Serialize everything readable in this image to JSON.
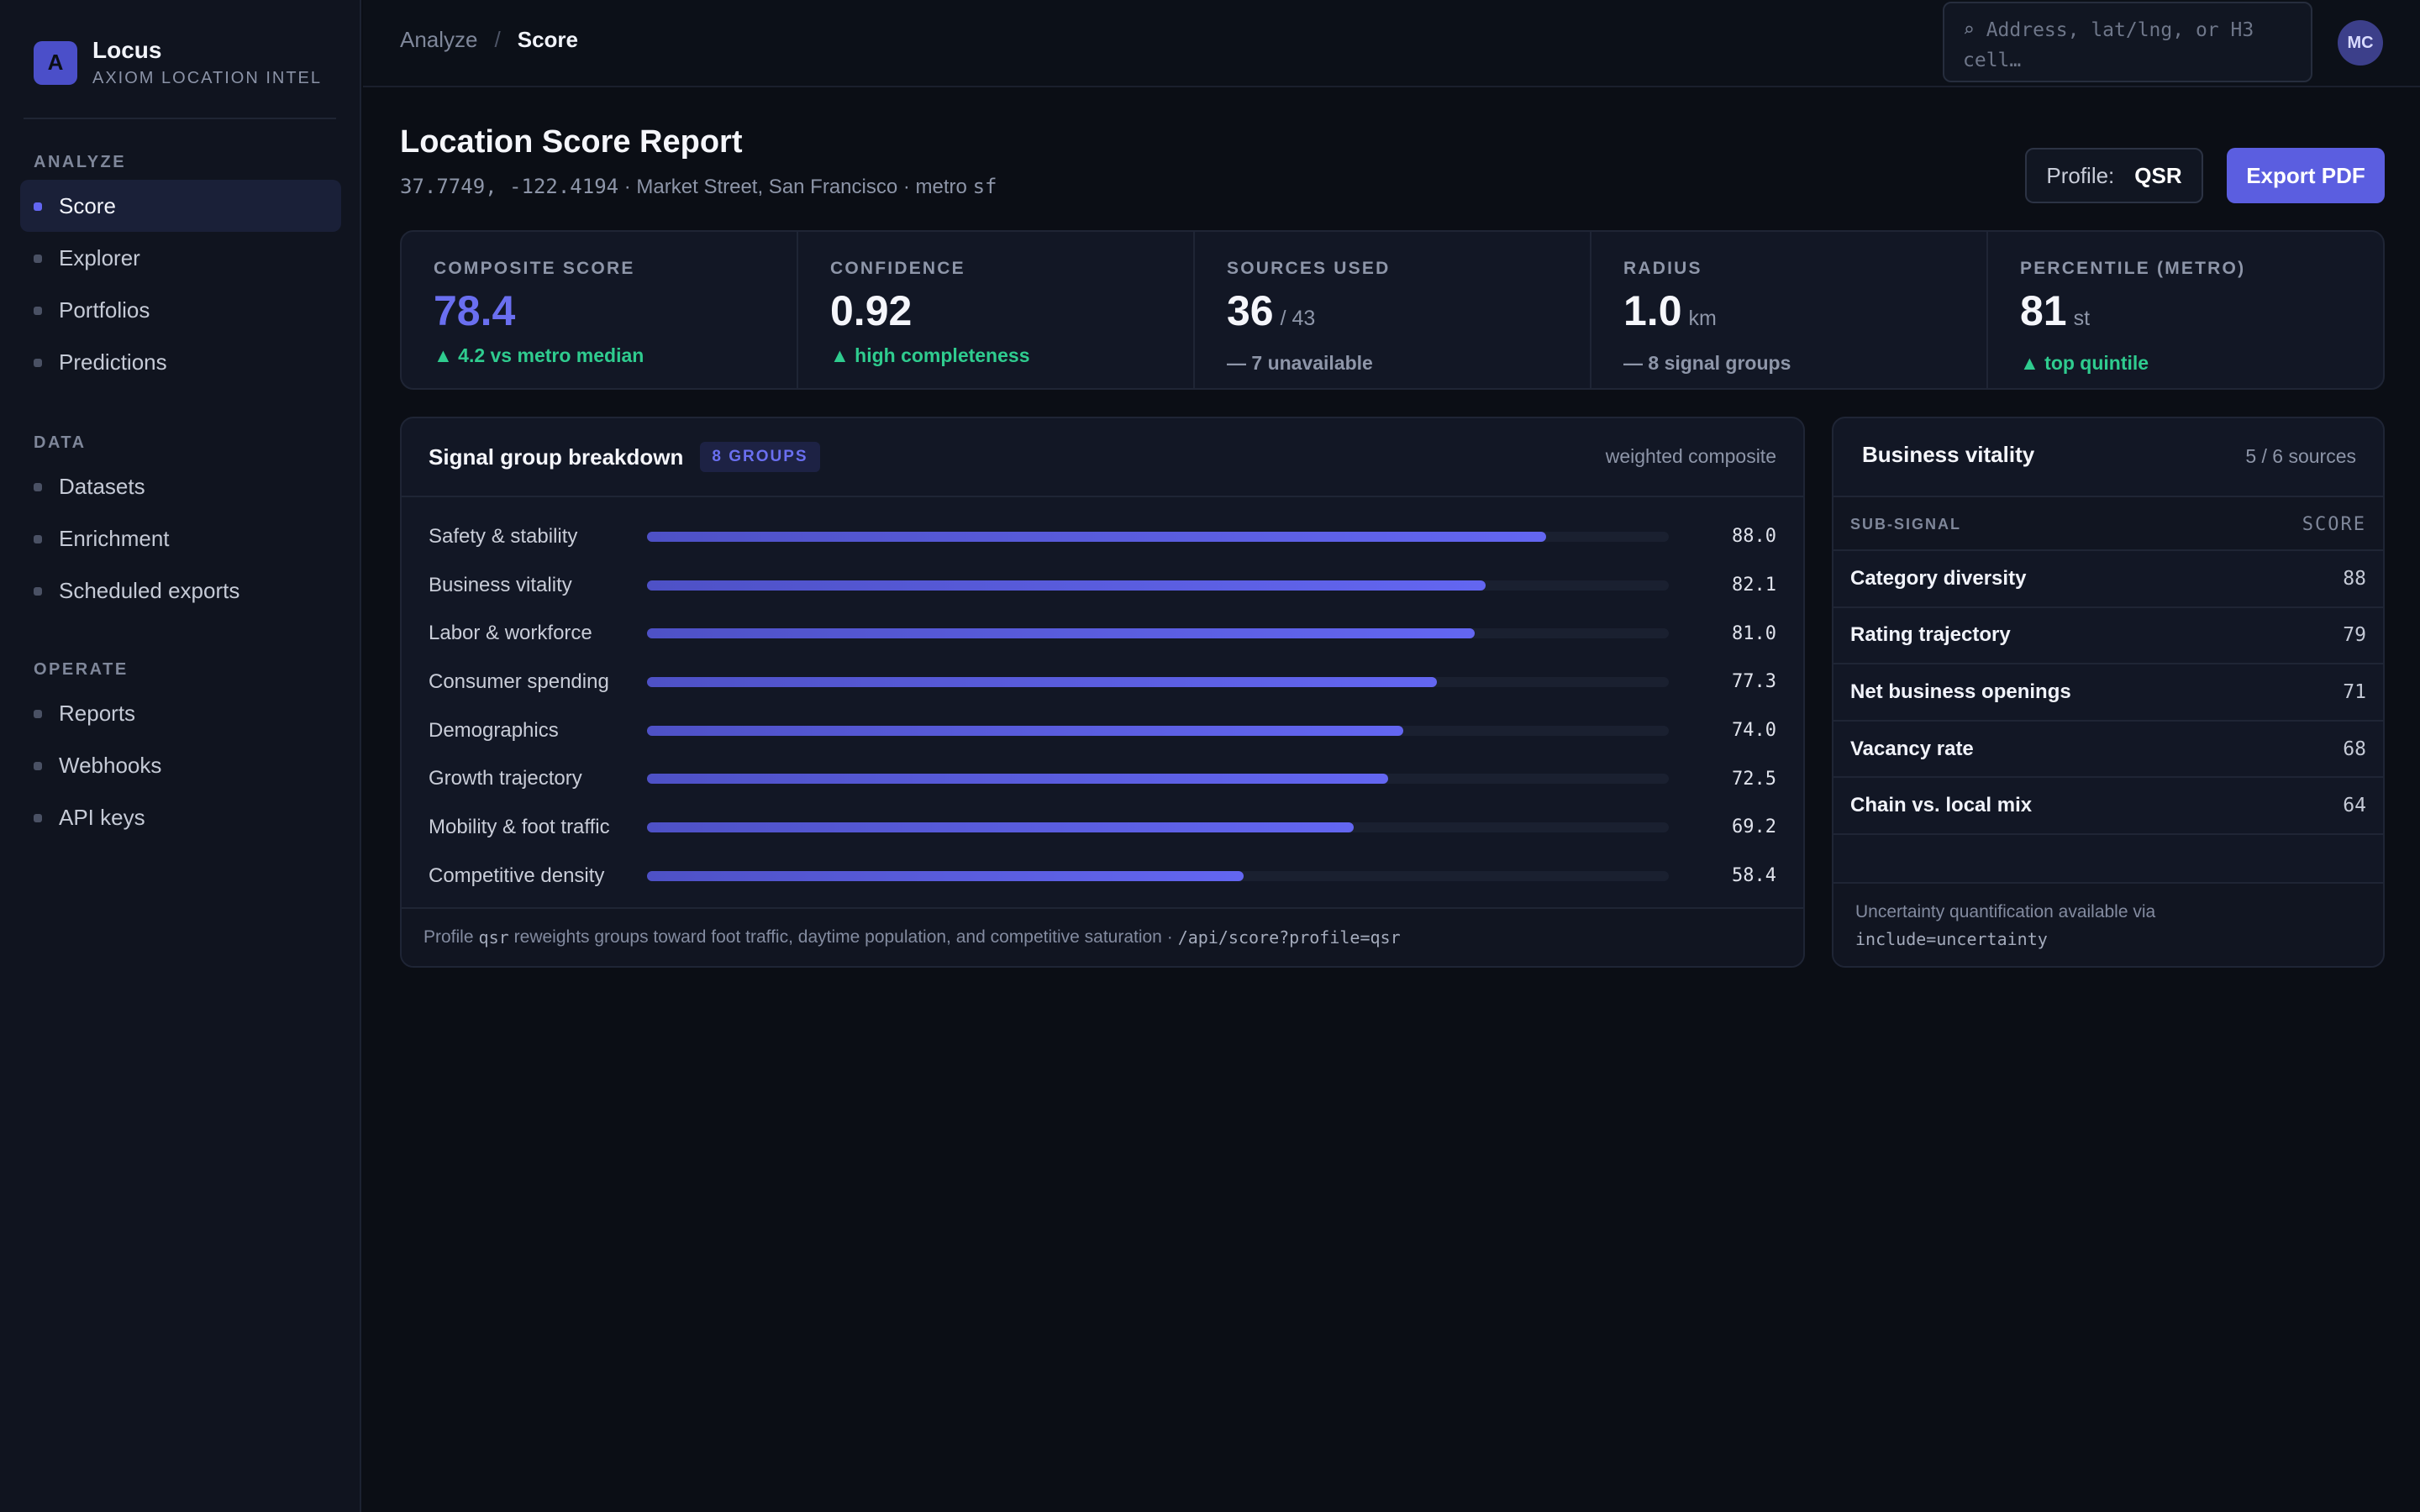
{
  "app": {
    "logo_letter": "A",
    "name": "Locus",
    "subtitle": "AXIOM LOCATION INTEL"
  },
  "sidebar": {
    "sections": [
      {
        "heading": "ANALYZE",
        "items": [
          {
            "label": "Score",
            "active": true
          },
          {
            "label": "Explorer"
          },
          {
            "label": "Portfolios"
          },
          {
            "label": "Predictions"
          }
        ]
      },
      {
        "heading": "DATA",
        "items": [
          {
            "label": "Datasets"
          },
          {
            "label": "Enrichment"
          },
          {
            "label": "Scheduled exports"
          }
        ]
      },
      {
        "heading": "OPERATE",
        "items": [
          {
            "label": "Reports"
          },
          {
            "label": "Webhooks"
          },
          {
            "label": "API keys"
          }
        ]
      }
    ]
  },
  "topbar": {
    "breadcrumb": {
      "parent": "Analyze",
      "separator": "/",
      "current": "Score"
    },
    "search_placeholder": "⌕  Address, lat/lng, or H3 cell…",
    "avatar_initials": "MC"
  },
  "header": {
    "title": "Location Score Report",
    "coords": "37.7749, -122.4194",
    "location": "· Market Street, San Francisco · metro",
    "metro_code": "sf",
    "profile_label": "Profile:",
    "profile_value": "QSR",
    "export_label": "Export PDF"
  },
  "kpis": [
    {
      "label": "COMPOSITE SCORE",
      "value": "78.4",
      "unit": "",
      "delta": "▲ 4.2 vs metro median",
      "delta_type": "up",
      "accent": true
    },
    {
      "label": "CONFIDENCE",
      "value": "0.92",
      "unit": "",
      "delta": "▲ high completeness",
      "delta_type": "up"
    },
    {
      "label": "SOURCES USED",
      "value": "36",
      "unit": "/ 43",
      "delta": "— 7 unavailable",
      "delta_type": "neutral"
    },
    {
      "label": "RADIUS",
      "value": "1.0",
      "unit": "km",
      "delta": "— 8 signal groups",
      "delta_type": "neutral"
    },
    {
      "label": "PERCENTILE (METRO)",
      "value": "81",
      "unit": "st",
      "delta": "▲ top quintile",
      "delta_type": "up"
    }
  ],
  "breakdown": {
    "title": "Signal group breakdown",
    "badge": "8 GROUPS",
    "right_label": "weighted composite",
    "max": 100,
    "groups": [
      {
        "label": "Safety & stability",
        "value": 88.0,
        "display": "88.0"
      },
      {
        "label": "Business vitality",
        "value": 82.1,
        "display": "82.1"
      },
      {
        "label": "Labor & workforce",
        "value": 81.0,
        "display": "81.0"
      },
      {
        "label": "Consumer spending",
        "value": 77.3,
        "display": "77.3"
      },
      {
        "label": "Demographics",
        "value": 74.0,
        "display": "74.0"
      },
      {
        "label": "Growth trajectory",
        "value": 72.5,
        "display": "72.5"
      },
      {
        "label": "Mobility & foot traffic",
        "value": 69.2,
        "display": "69.2"
      },
      {
        "label": "Competitive density",
        "value": 58.4,
        "display": "58.4"
      }
    ],
    "footer_pre": "Profile",
    "footer_profile": "qsr",
    "footer_mid": "reweights groups toward foot traffic, daytime population, and competitive saturation ·",
    "footer_endpoint": "/api/score?profile=qsr"
  },
  "vitality": {
    "title": "Business vitality",
    "sources": "5 / 6 sources",
    "col_signal": "SUB-SIGNAL",
    "col_score": "SCORE",
    "rows": [
      {
        "name": "Category diversity",
        "score": "88"
      },
      {
        "name": "Rating trajectory",
        "score": "79"
      },
      {
        "name": "Net business openings",
        "score": "71"
      },
      {
        "name": "Vacancy rate",
        "score": "68"
      },
      {
        "name": "Chain vs. local mix",
        "score": "64"
      }
    ],
    "footer_text": "Uncertainty quantification available via",
    "footer_code": "include=uncertainty"
  },
  "colors": {
    "accent": "#6366f1",
    "positive": "#2fcc8f",
    "background": "#0b0e15"
  }
}
